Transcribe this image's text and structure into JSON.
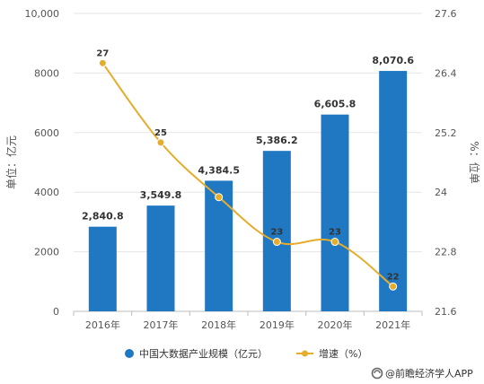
{
  "chart_data": {
    "type": "bar",
    "categories": [
      "2016年",
      "2017年",
      "2018年",
      "2019年",
      "2020年",
      "2021年"
    ],
    "series": [
      {
        "name": "中国大数据产业规模（亿元）",
        "type": "bar",
        "axis": "left",
        "color": "#1f78c1",
        "values": [
          2840.8,
          3549.8,
          4384.5,
          5386.2,
          6605.8,
          8070.6
        ],
        "labels": [
          "2,840.8",
          "3,549.8",
          "4,384.5",
          "5,386.2",
          "6,605.8",
          "8,070.6"
        ]
      },
      {
        "name": "增速（%）",
        "type": "line",
        "axis": "right",
        "color": "#e6ac2c",
        "values": [
          26.6,
          25.0,
          23.9,
          23.0,
          23.0,
          22.1
        ],
        "labels": [
          "27",
          "25",
          "",
          "23",
          "23",
          "22"
        ]
      }
    ],
    "yleft": {
      "label": "单位：亿元",
      "lim": [
        0,
        10000
      ],
      "ticks": [
        "0",
        "2000",
        "4000",
        "6000",
        "8000",
        "10,000"
      ]
    },
    "yright": {
      "label": "%：位单",
      "lim": [
        21.6,
        27.6
      ],
      "ticks": [
        "21.6",
        "22.8",
        "24",
        "25.2",
        "26.4",
        "27.6"
      ]
    },
    "grid": true,
    "legend": "bottom"
  },
  "credit": {
    "icon": "swirl-logo-icon",
    "text": "@前瞻经济学人APP"
  }
}
